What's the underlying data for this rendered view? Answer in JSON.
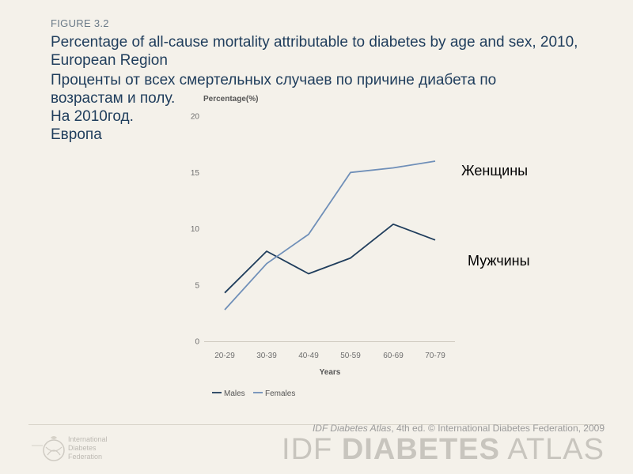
{
  "header": {
    "figure_label": "FIGURE 3.2",
    "title_en": "Percentage of all-cause mortality attributable to diabetes by age and sex, 2010, European Region",
    "title_ru_lines": [
      "Проценты от всех смертельных случаев по причине диабета по",
      "возрастам и полу.",
      "На 2010год.",
      "Европа"
    ]
  },
  "chart_data": {
    "type": "line",
    "ylabel": "Percentage(%)",
    "xlabel": "Years",
    "categories": [
      "20-29",
      "30-39",
      "40-49",
      "50-59",
      "60-69",
      "70-79"
    ],
    "ylim": [
      0,
      20
    ],
    "yticks": [
      0,
      5,
      10,
      15,
      20
    ],
    "grid": false,
    "legend_position": "bottom-left",
    "series": [
      {
        "name": "Males",
        "color": "#1f3d5c",
        "values": [
          4.3,
          8.0,
          6.0,
          7.4,
          10.4,
          9.0
        ]
      },
      {
        "name": "Females",
        "color": "#6f8fb8",
        "values": [
          2.8,
          6.9,
          9.5,
          15.0,
          15.4,
          16.0
        ]
      }
    ],
    "annotations": {
      "females": "Женщины",
      "males": "Мужчины"
    }
  },
  "footer": {
    "copyright_italic": "IDF Diabetes Atlas",
    "copyright_rest": ", 4th ed.  © International Diabetes Federation, 2009",
    "brand_light1": "IDF ",
    "brand_bold": "DIABETES",
    "brand_light2": " ATLAS",
    "logo_lines": [
      "International",
      "Diabetes",
      "Federation"
    ],
    "icon": "idf-globe-logo-icon"
  }
}
